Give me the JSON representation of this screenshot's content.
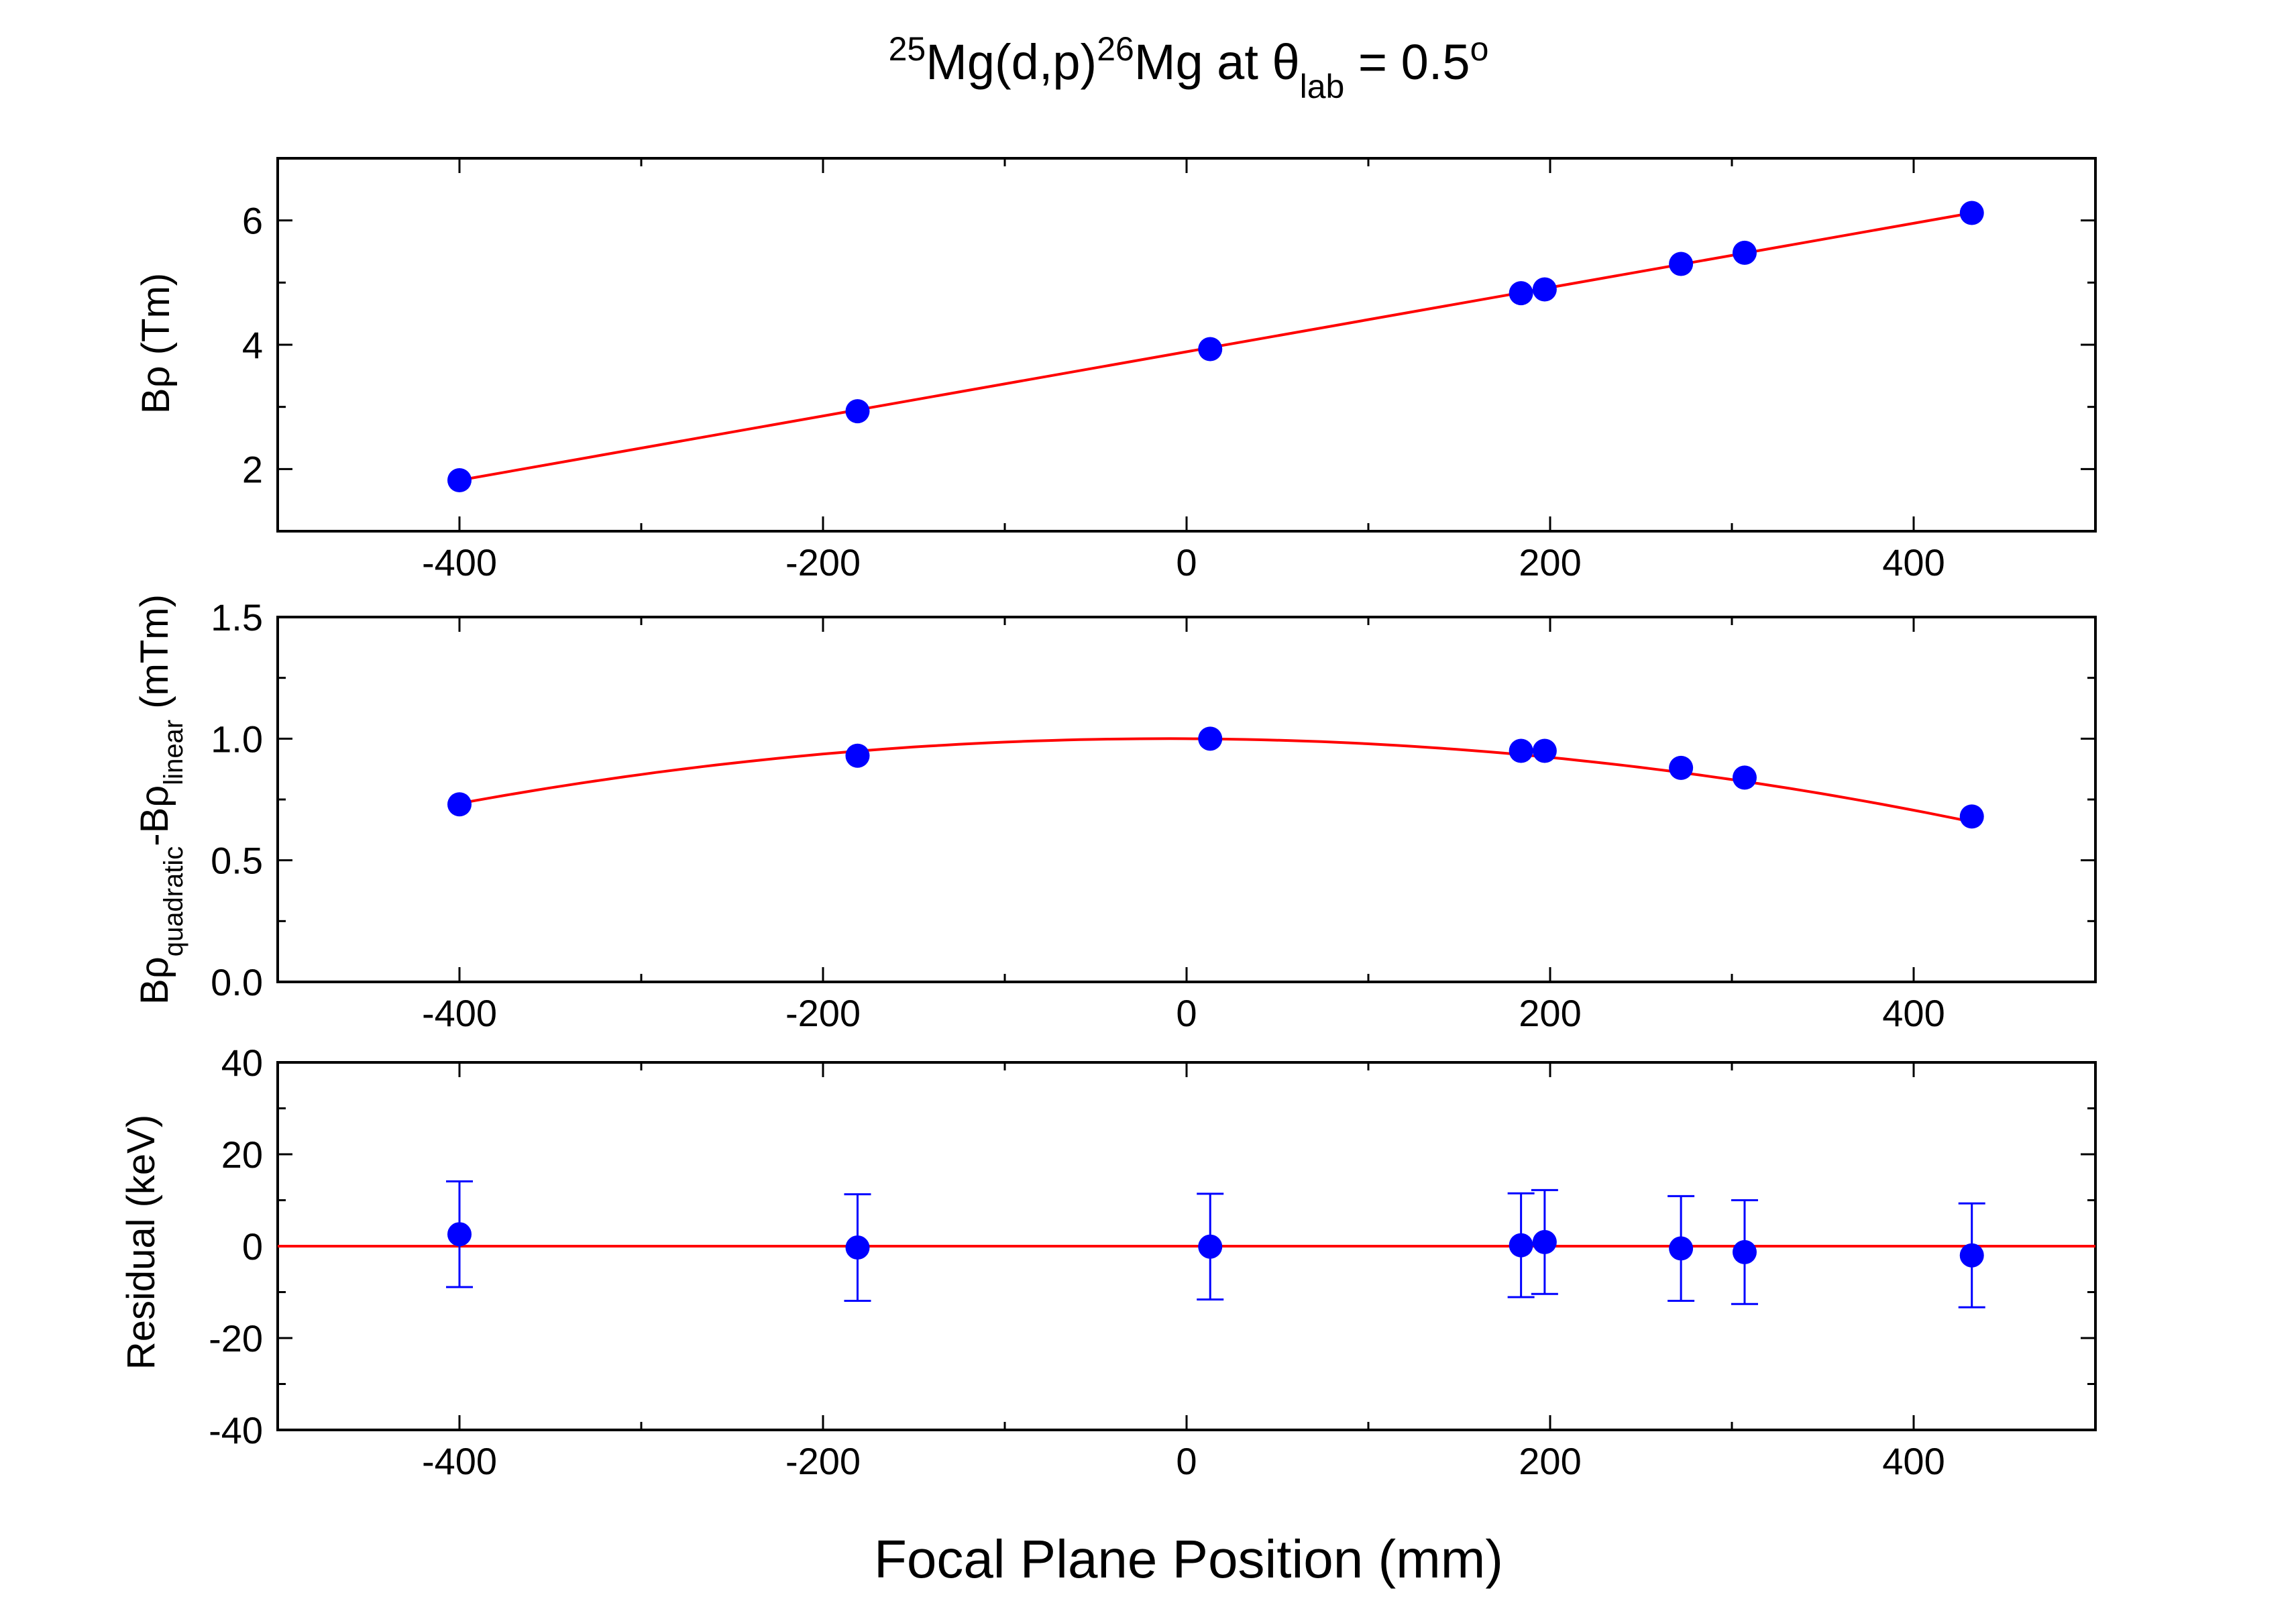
{
  "chart_data": [
    {
      "type": "scatter",
      "panel": "top",
      "ylabel": "Bρ (Tm)",
      "xlim": [
        -500,
        500
      ],
      "ylim": [
        1,
        7
      ],
      "xticks": [
        "-400",
        "-200",
        "0",
        "200",
        "400"
      ],
      "yticks": [
        "2",
        "4",
        "6"
      ],
      "series": [
        {
          "x": [
            -400,
            -181,
            13,
            184,
            197,
            272,
            307,
            432
          ],
          "y": [
            1.82,
            2.93,
            3.93,
            4.83,
            4.89,
            5.3,
            5.48,
            6.12
          ]
        }
      ],
      "fit": {
        "kind": "linear",
        "x": [
          -400,
          432
        ],
        "y": [
          1.82,
          6.12
        ]
      },
      "colors": {
        "points": "#0000ff",
        "fit": "#ff0000"
      }
    },
    {
      "type": "scatter",
      "panel": "middle",
      "ylabel_main": "Bρ",
      "ylabel_sub1": "quadratic",
      "ylabel_mid": "-Bρ",
      "ylabel_sub2": "linear",
      "ylabel_tail": " (mTm)",
      "xlim": [
        -500,
        500
      ],
      "ylim": [
        0,
        1.5
      ],
      "xticks": [
        "-400",
        "-200",
        "0",
        "200",
        "400"
      ],
      "yticks": [
        "0.0",
        "0.5",
        "1.0",
        "1.5"
      ],
      "series": [
        {
          "x": [
            -400,
            -181,
            13,
            184,
            197,
            272,
            307,
            432
          ],
          "y": [
            0.73,
            0.93,
            1.0,
            0.95,
            0.95,
            0.88,
            0.84,
            0.68
          ]
        }
      ],
      "fit": {
        "kind": "quadratic",
        "x_range": [
          -400,
          432
        ],
        "vertex_x": -10,
        "vertex_y": 1.0,
        "curvature": 1.75e-06
      },
      "colors": {
        "points": "#0000ff",
        "fit": "#ff0000"
      }
    },
    {
      "type": "scatter",
      "panel": "bottom",
      "ylabel": "Residual (keV)",
      "xlabel": "Focal Plane Position (mm)",
      "xlim": [
        -500,
        500
      ],
      "ylim": [
        -40,
        40
      ],
      "xticks": [
        "-400",
        "-200",
        "0",
        "200",
        "400"
      ],
      "yticks": [
        "-40",
        "-20",
        "0",
        "20",
        "40"
      ],
      "series": [
        {
          "x": [
            -400,
            -181,
            13,
            184,
            197,
            272,
            307,
            432
          ],
          "y": [
            2.6,
            -0.3,
            -0.1,
            0.2,
            0.9,
            -0.5,
            -1.3,
            -2.0
          ],
          "error": [
            11.5,
            11.6,
            11.5,
            11.3,
            11.3,
            11.4,
            11.3,
            11.3
          ]
        }
      ],
      "fit": {
        "kind": "zero-line",
        "y": 0
      },
      "colors": {
        "points": "#0000ff",
        "fit": "#ff0000"
      }
    }
  ],
  "title": {
    "sup1": "25",
    "part1": "Mg(d,p)",
    "sup2": "26",
    "part2": "Mg at θ",
    "sub": "lab",
    "part3": " = 0.5",
    "sup3": "o"
  }
}
